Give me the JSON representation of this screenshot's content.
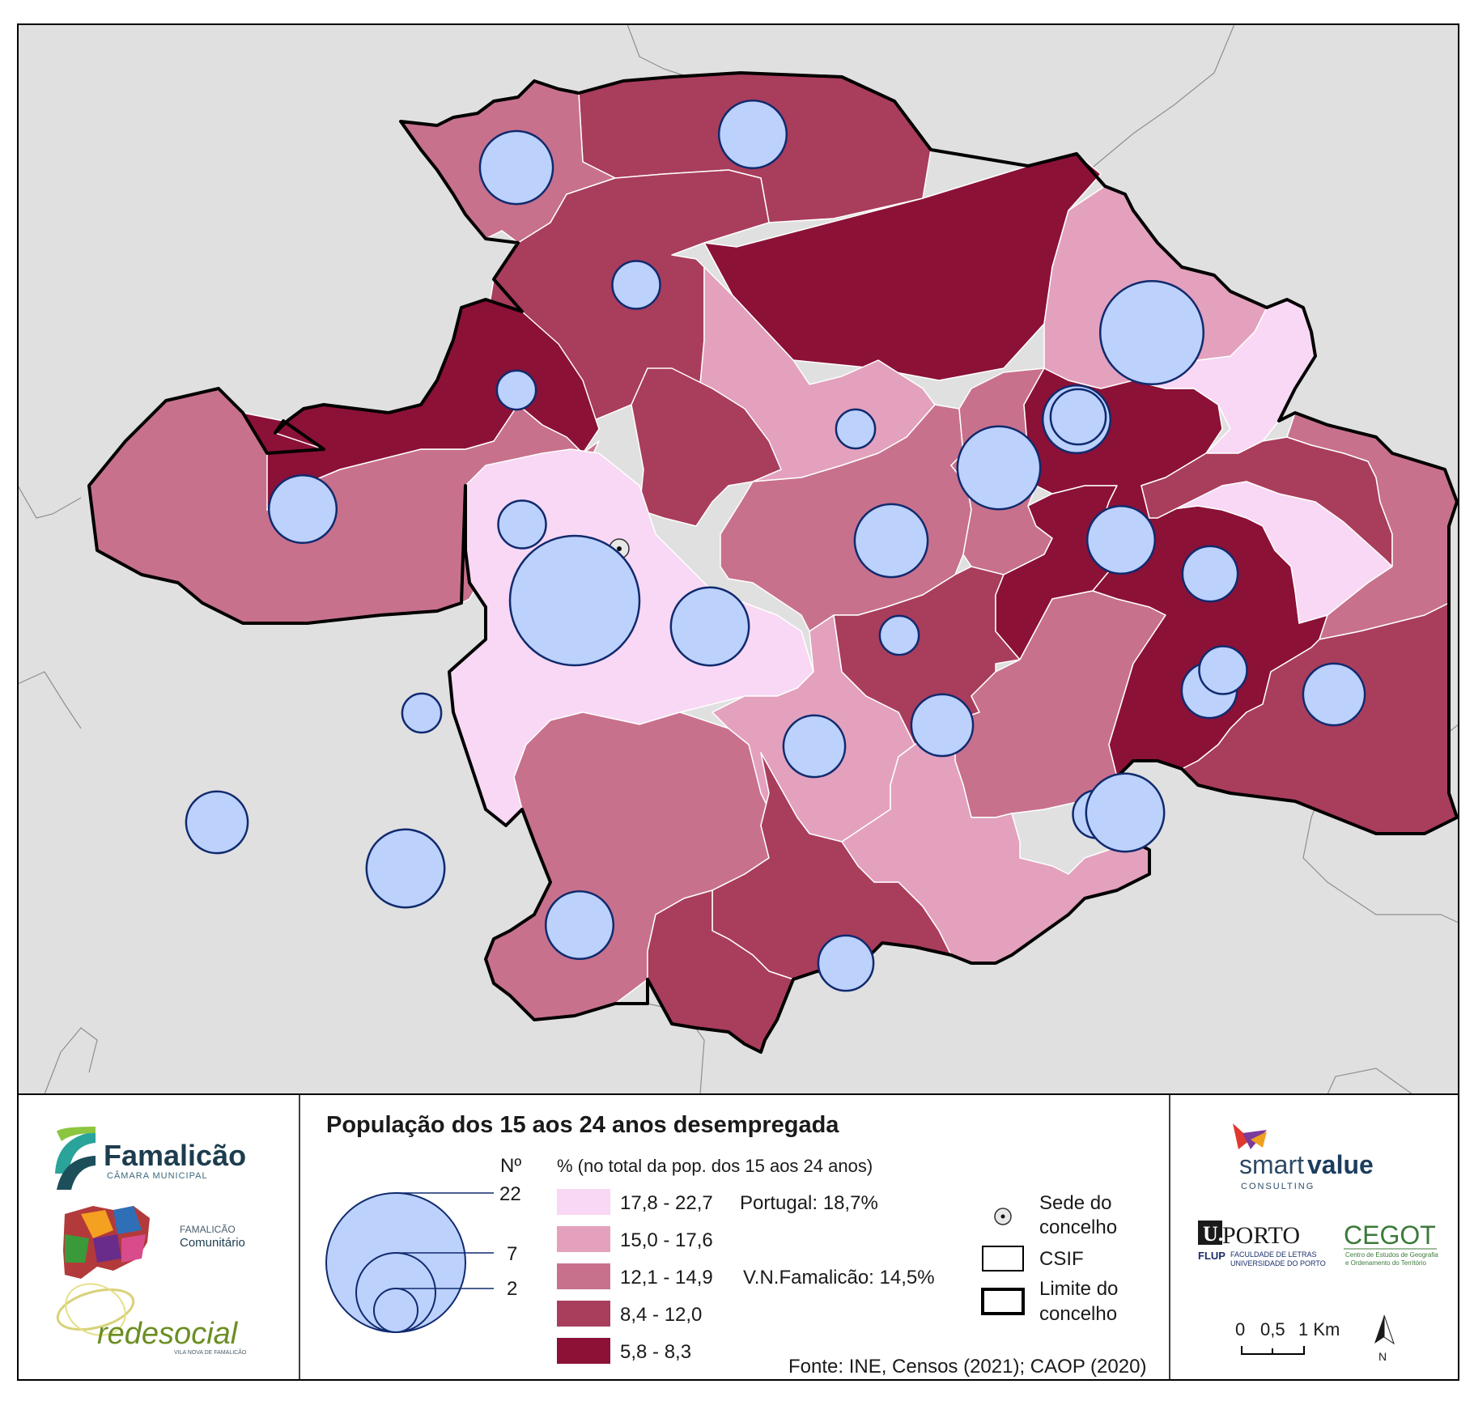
{
  "legend": {
    "title": "População dos 15 aos 24 anos desempregada",
    "count_heading": "Nº",
    "count_values": [
      "22",
      "7",
      "2"
    ],
    "percent_heading": "% (no total da pop. dos 15 aos 24 anos)",
    "classes": [
      {
        "label": "17,8 - 22,7",
        "color": "#f8d8f4"
      },
      {
        "label": "15,0 - 17,6",
        "color": "#e3a1bd"
      },
      {
        "label": "12,1 - 14,9",
        "color": "#c8718c"
      },
      {
        "label": "8,4 - 12,0",
        "color": "#a93d5c"
      },
      {
        "label": "5,8 - 8,3",
        "color": "#8b1137"
      }
    ],
    "reference_portugal": "Portugal: 18,7%",
    "reference_municipality": "V.N.Famalicão: 14,5%",
    "symbols": [
      {
        "label": "Sede do concelho",
        "icon": "seat-dot-icon"
      },
      {
        "label": "CSIF",
        "icon": "thin-outline-box"
      },
      {
        "label": "Limite do concelho",
        "icon": "thick-outline-box"
      }
    ],
    "source": "Fonte: INE, Censos (2021); CAOP (2020)"
  },
  "scale": {
    "labels": [
      "0",
      "0,5",
      "1 Km"
    ],
    "north": "N"
  },
  "logos": {
    "famalicao_word": "Famalicão",
    "famalicao_sub": "CÂMARA MUNICIPAL",
    "comunitario_small": "FAMALICÃO",
    "comunitario": "Comunitário",
    "redesocial": "redesocial",
    "redesocial_sub": "VILA NOVA DE FAMALICÃO",
    "smart_a": "smart",
    "smart_b": "value",
    "smart_c": "CONSULTING",
    "uporto": "U.PORTO",
    "flup": "FLUP",
    "flup_line1": "FACULDADE DE LETRAS",
    "flup_line2": "UNIVERSIDADE DO PORTO",
    "cegot": "CEGOT",
    "cegot_line1": "Centro de Estudos de Geografia",
    "cegot_line2": "e Ordenamento do Território"
  },
  "map": {
    "background_color": "#e0e0e0",
    "bubble_fill": "#bcd1fc",
    "bubble_stroke": "#102a6e",
    "region_classes": [
      4,
      3,
      2,
      3,
      1,
      3,
      2,
      4,
      0,
      2,
      1,
      2,
      2,
      3,
      4,
      2,
      1,
      3,
      3,
      4,
      0,
      0,
      1,
      3,
      2,
      3
    ],
    "bubble_counts": [
      7,
      6,
      3,
      2,
      6,
      22,
      8,
      3,
      7,
      2,
      6,
      6,
      2,
      5,
      4,
      5,
      6,
      4,
      14,
      6,
      4,
      4,
      3,
      5,
      3,
      8,
      2,
      5,
      8,
      9
    ]
  }
}
